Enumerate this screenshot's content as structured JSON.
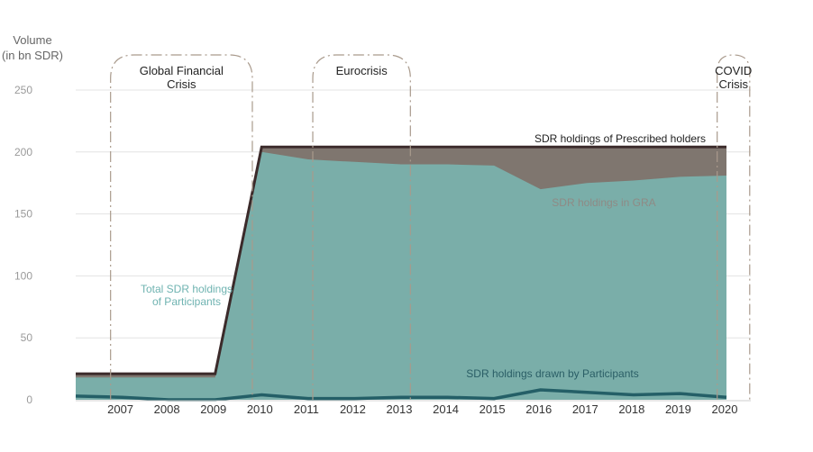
{
  "chart_data": {
    "type": "area",
    "ylabel_line1": "Volume",
    "ylabel_line2": "(in bn SDR)",
    "ylim": [
      0,
      250
    ],
    "y_ticks": [
      "0",
      "50",
      "100",
      "150",
      "200",
      "250"
    ],
    "y_tick_values": [
      0,
      50,
      100,
      150,
      200,
      250
    ],
    "x": [
      2006,
      2007,
      2008,
      2009,
      2010,
      2011,
      2012,
      2013,
      2014,
      2015,
      2016,
      2017,
      2018,
      2019,
      2020
    ],
    "x_tick_labels": [
      "2007",
      "2008",
      "2009",
      "2010",
      "2011",
      "2012",
      "2013",
      "2014",
      "2015",
      "2016",
      "2017",
      "2018",
      "2019",
      "2020"
    ],
    "series": [
      {
        "name": "Total SDR holdings of Participants",
        "values": [
          18,
          18,
          18,
          18,
          200,
          194,
          192,
          190,
          190,
          189,
          170,
          175,
          177,
          180,
          181
        ],
        "color": "#7aaea9"
      },
      {
        "name": "SDR holdings in GRA",
        "values": [
          21,
          21,
          21,
          21,
          203,
          203,
          203,
          203,
          203,
          203,
          203,
          203,
          203,
          203,
          203
        ],
        "color": "#7f766f"
      },
      {
        "name": "SDR holdings of Prescribed holders",
        "values": [
          21,
          21,
          21,
          21,
          204,
          204,
          204,
          204,
          204,
          204,
          204,
          204,
          204,
          204,
          204
        ],
        "color": "#3b2a2a"
      },
      {
        "name": "SDR holdings drawn by Participants",
        "values": [
          3,
          2,
          0,
          0,
          4,
          1,
          1,
          2,
          2,
          1,
          8,
          6,
          4,
          5,
          2
        ],
        "color": "#245f67"
      }
    ],
    "crises": [
      {
        "label_lines": [
          "Global Financial",
          "Crisis"
        ],
        "start": 2006.75,
        "end": 2009.8
      },
      {
        "label_lines": [
          "Eurocrisis"
        ],
        "start": 2011.1,
        "end": 2013.2
      },
      {
        "label_lines": [
          "COVID",
          "Crisis"
        ],
        "start": 2019.8,
        "end": 2020.5
      }
    ],
    "annotations": {
      "total": [
        "Total SDR holdings",
        "of Participants"
      ],
      "gra": "SDR holdings in GRA",
      "prescribed": "SDR holdings of Prescribed holders",
      "drawn": "SDR holdings drawn by Participants"
    },
    "grid": true,
    "colors": {
      "grid": "#e3e3e3",
      "crisis_border": "#a99a8c",
      "annotation_total": "#6fb3b1",
      "annotation_gra": "#8f8a85",
      "annotation_prescribed": "#222222",
      "annotation_drawn": "#2a5e66"
    }
  }
}
